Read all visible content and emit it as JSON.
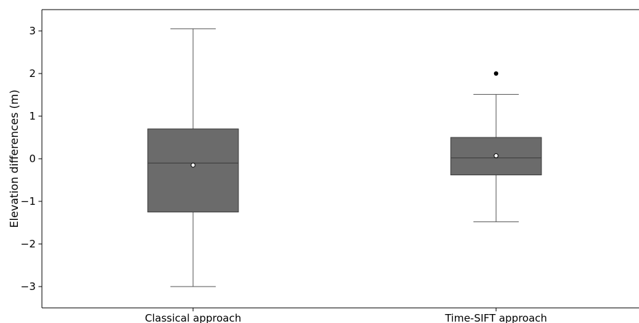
{
  "chart_data": {
    "type": "box",
    "title": "",
    "xlabel": "",
    "ylabel": "Elevation differences (m)",
    "ylim": [
      -3.5,
      3.5
    ],
    "yticks": [
      3,
      2,
      1,
      0,
      -1,
      -2,
      -3
    ],
    "ytick_labels": [
      "3",
      "2",
      "1",
      "0",
      "−1",
      "−2",
      "−3"
    ],
    "grid": false,
    "categories": [
      "Classical approach",
      "Time-SIFT approach"
    ],
    "boxes": [
      {
        "category": "Classical approach",
        "whisker_low": -3.0,
        "q1": -1.25,
        "median": -0.1,
        "mean": -0.15,
        "q3": 0.7,
        "whisker_high": 3.05,
        "outliers": []
      },
      {
        "category": "Time-SIFT approach",
        "whisker_low": -1.48,
        "q1": -0.38,
        "median": 0.02,
        "mean": 0.07,
        "q3": 0.5,
        "whisker_high": 1.51,
        "outliers": [
          2.0
        ]
      }
    ],
    "colors": {
      "box_fill": "#6b6b6b",
      "box_edge": "#3a3a3a",
      "whisker": "#555555",
      "mean_marker_fill": "#ffffff",
      "mean_marker_edge": "#000000",
      "outlier": "#000000",
      "axis": "#000000"
    }
  }
}
